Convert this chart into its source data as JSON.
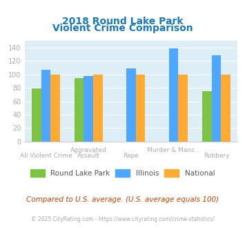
{
  "title_line1": "2018 Round Lake Park",
  "title_line2": "Violent Crime Comparison",
  "categories": [
    "All Violent Crime",
    "Aggravated Assault",
    "Rape",
    "Murder & Mans...",
    "Robbery"
  ],
  "rlp_values": [
    79,
    95,
    0,
    0,
    75
  ],
  "il_values": [
    107,
    98,
    109,
    139,
    129
  ],
  "nat_values": [
    100,
    100,
    100,
    100,
    100
  ],
  "rlp_color": "#7dc242",
  "il_color": "#4da6ff",
  "nat_color": "#ffaa33",
  "bg_color": "#ddeef6",
  "title_color": "#1a7abf",
  "tick_color": "#aaaaaa",
  "xlabel_color": "#aaaaaa",
  "legend_labels": [
    "Round Lake Park",
    "Illinois",
    "National"
  ],
  "footer_text": "Compared to U.S. average. (U.S. average equals 100)",
  "copyright_text": "© 2025 CityRating.com - https://www.cityrating.com/crime-statistics/",
  "ylim": [
    0,
    150
  ],
  "yticks": [
    0,
    20,
    40,
    60,
    80,
    100,
    120,
    140
  ],
  "bar_width": 0.22
}
